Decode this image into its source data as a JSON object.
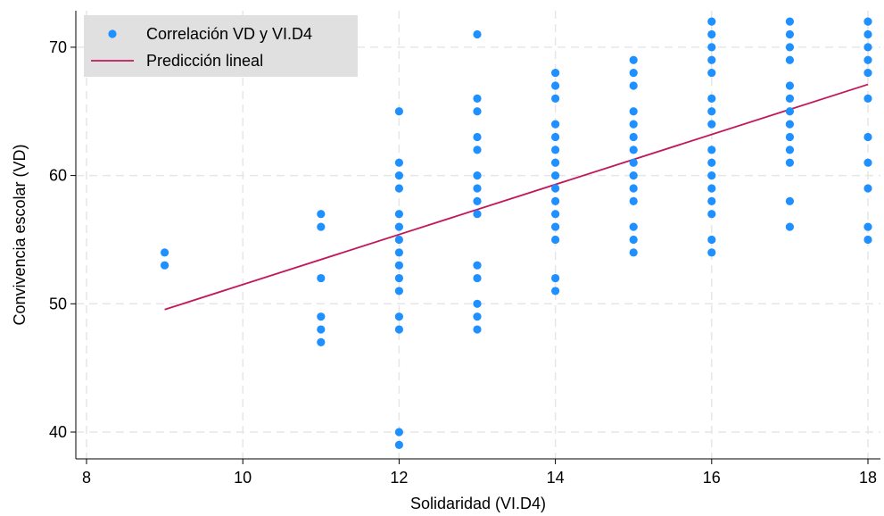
{
  "chart_data": {
    "type": "scatter",
    "xlabel": "Solidaridad (VI.D4)",
    "ylabel": "Convivencia escolar (VD)",
    "xlim": [
      8,
      18.2
    ],
    "ylim": [
      38,
      73
    ],
    "x_ticks": [
      8,
      10,
      12,
      14,
      16,
      18
    ],
    "y_ticks": [
      40,
      50,
      60,
      70
    ],
    "grid": true,
    "legend_position": "top-left",
    "series": [
      {
        "name": "Correlación VD y VI.D4",
        "kind": "scatter",
        "color": "#1E90FF",
        "points": [
          {
            "x": 9,
            "y": 54
          },
          {
            "x": 9,
            "y": 53
          },
          {
            "x": 11,
            "y": 57
          },
          {
            "x": 11,
            "y": 56
          },
          {
            "x": 11,
            "y": 52
          },
          {
            "x": 11,
            "y": 49
          },
          {
            "x": 11,
            "y": 48
          },
          {
            "x": 11,
            "y": 47
          },
          {
            "x": 12,
            "y": 65
          },
          {
            "x": 12,
            "y": 61
          },
          {
            "x": 12,
            "y": 60
          },
          {
            "x": 12,
            "y": 59
          },
          {
            "x": 12,
            "y": 57
          },
          {
            "x": 12,
            "y": 56
          },
          {
            "x": 12,
            "y": 55
          },
          {
            "x": 12,
            "y": 54
          },
          {
            "x": 12,
            "y": 53
          },
          {
            "x": 12,
            "y": 52
          },
          {
            "x": 12,
            "y": 51
          },
          {
            "x": 12,
            "y": 49
          },
          {
            "x": 12,
            "y": 48
          },
          {
            "x": 12,
            "y": 40
          },
          {
            "x": 12,
            "y": 39
          },
          {
            "x": 13,
            "y": 71
          },
          {
            "x": 13,
            "y": 66
          },
          {
            "x": 13,
            "y": 65
          },
          {
            "x": 13,
            "y": 63
          },
          {
            "x": 13,
            "y": 62
          },
          {
            "x": 13,
            "y": 60
          },
          {
            "x": 13,
            "y": 59
          },
          {
            "x": 13,
            "y": 58
          },
          {
            "x": 13,
            "y": 57
          },
          {
            "x": 13,
            "y": 53
          },
          {
            "x": 13,
            "y": 52
          },
          {
            "x": 13,
            "y": 50
          },
          {
            "x": 13,
            "y": 49
          },
          {
            "x": 13,
            "y": 48
          },
          {
            "x": 14,
            "y": 68
          },
          {
            "x": 14,
            "y": 67
          },
          {
            "x": 14,
            "y": 66
          },
          {
            "x": 14,
            "y": 64
          },
          {
            "x": 14,
            "y": 63
          },
          {
            "x": 14,
            "y": 62
          },
          {
            "x": 14,
            "y": 61
          },
          {
            "x": 14,
            "y": 60
          },
          {
            "x": 14,
            "y": 59
          },
          {
            "x": 14,
            "y": 58
          },
          {
            "x": 14,
            "y": 57
          },
          {
            "x": 14,
            "y": 56
          },
          {
            "x": 14,
            "y": 55
          },
          {
            "x": 14,
            "y": 52
          },
          {
            "x": 14,
            "y": 51
          },
          {
            "x": 15,
            "y": 69
          },
          {
            "x": 15,
            "y": 68
          },
          {
            "x": 15,
            "y": 67
          },
          {
            "x": 15,
            "y": 65
          },
          {
            "x": 15,
            "y": 64
          },
          {
            "x": 15,
            "y": 63
          },
          {
            "x": 15,
            "y": 62
          },
          {
            "x": 15,
            "y": 61
          },
          {
            "x": 15,
            "y": 60
          },
          {
            "x": 15,
            "y": 59
          },
          {
            "x": 15,
            "y": 58
          },
          {
            "x": 15,
            "y": 56
          },
          {
            "x": 15,
            "y": 55
          },
          {
            "x": 15,
            "y": 54
          },
          {
            "x": 16,
            "y": 72
          },
          {
            "x": 16,
            "y": 71
          },
          {
            "x": 16,
            "y": 70
          },
          {
            "x": 16,
            "y": 69
          },
          {
            "x": 16,
            "y": 68
          },
          {
            "x": 16,
            "y": 66
          },
          {
            "x": 16,
            "y": 65
          },
          {
            "x": 16,
            "y": 64
          },
          {
            "x": 16,
            "y": 62
          },
          {
            "x": 16,
            "y": 61
          },
          {
            "x": 16,
            "y": 60
          },
          {
            "x": 16,
            "y": 59
          },
          {
            "x": 16,
            "y": 58
          },
          {
            "x": 16,
            "y": 57
          },
          {
            "x": 16,
            "y": 55
          },
          {
            "x": 16,
            "y": 54
          },
          {
            "x": 17,
            "y": 72
          },
          {
            "x": 17,
            "y": 71
          },
          {
            "x": 17,
            "y": 70
          },
          {
            "x": 17,
            "y": 69
          },
          {
            "x": 17,
            "y": 67
          },
          {
            "x": 17,
            "y": 66
          },
          {
            "x": 17,
            "y": 65
          },
          {
            "x": 17,
            "y": 64
          },
          {
            "x": 17,
            "y": 63
          },
          {
            "x": 17,
            "y": 62
          },
          {
            "x": 17,
            "y": 61
          },
          {
            "x": 17,
            "y": 58
          },
          {
            "x": 17,
            "y": 56
          },
          {
            "x": 18,
            "y": 72
          },
          {
            "x": 18,
            "y": 71
          },
          {
            "x": 18,
            "y": 70
          },
          {
            "x": 18,
            "y": 69
          },
          {
            "x": 18,
            "y": 68
          },
          {
            "x": 18,
            "y": 66
          },
          {
            "x": 18,
            "y": 63
          },
          {
            "x": 18,
            "y": 61
          },
          {
            "x": 18,
            "y": 59
          },
          {
            "x": 18,
            "y": 56
          },
          {
            "x": 18,
            "y": 55
          }
        ]
      },
      {
        "name": "Predicción lineal",
        "kind": "line",
        "color": "#C2185B",
        "x": [
          9,
          18
        ],
        "y": [
          49.55,
          67.1
        ]
      }
    ]
  }
}
